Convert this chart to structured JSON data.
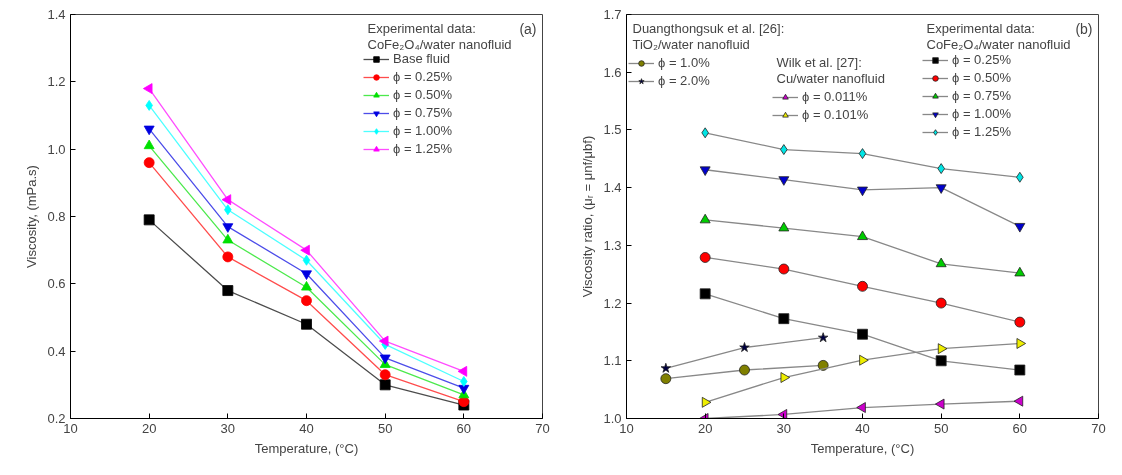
{
  "chart_data": [
    {
      "type": "line",
      "xlabel": "Temperature, (°C)",
      "ylabel": "Viscosity, (mPa.s)",
      "legend_title": "Experimental data: CoFe₂O₄/water nanofluid",
      "annotations": [
        "(a)"
      ],
      "x": [
        20,
        30,
        40,
        50,
        60
      ],
      "xlim": [
        10,
        70
      ],
      "xticks": [
        10,
        20,
        30,
        40,
        50,
        60,
        70
      ],
      "ylim": [
        0.2,
        1.4
      ],
      "yticks": [
        0.2,
        0.4,
        0.6,
        0.8,
        {
          "value": 1.0,
          "label": "1.0"
        },
        1.2,
        1.4
      ],
      "grid": false,
      "legend": "top right",
      "series": [
        {
          "name": "Base fluid",
          "color": "#000000",
          "marker": "square",
          "values": [
            0.79,
            0.58,
            0.48,
            0.3,
            0.24
          ]
        },
        {
          "name": "ϕ = 0.25%",
          "color": "#ff0000",
          "marker": "circle",
          "values": [
            0.96,
            0.68,
            0.55,
            0.33,
            0.25
          ]
        },
        {
          "name": "ϕ = 0.50%",
          "color": "#00e000",
          "marker": "triangle",
          "values": [
            1.01,
            0.73,
            0.59,
            0.36,
            0.27
          ]
        },
        {
          "name": "ϕ = 0.75%",
          "color": "#0000e0",
          "marker": "triangle",
          "values": [
            1.06,
            0.77,
            0.63,
            0.38,
            0.29
          ]
        },
        {
          "name": "ϕ = 1.00%",
          "color": "#00ffff",
          "marker": "diamond",
          "values": [
            1.13,
            0.82,
            0.67,
            0.42,
            0.31
          ]
        },
        {
          "name": "ϕ = 1.25%",
          "color": "#ff00ff",
          "marker": "triangle",
          "values": [
            1.18,
            0.85,
            0.7,
            0.43,
            0.34
          ]
        }
      ]
    },
    {
      "type": "line",
      "xlabel": "Temperature, (°C)",
      "ylabel": "Viscosity ratio, (μᵣ = μnf/μbf)",
      "legend_title": "Experimental data: CoFe₂O₄/water nanofluid",
      "annotations": [
        "(b)",
        "Duangthongsuk et al. [26]: TiO₂/water nanofluid",
        "Wilk et al. [27]: Cu/water nanofluid"
      ],
      "x": [
        20,
        30,
        40,
        50,
        60
      ],
      "xlim": [
        10,
        70
      ],
      "xticks": [
        10,
        20,
        30,
        40,
        50,
        60,
        70
      ],
      "ylim": [
        1.0,
        1.7
      ],
      "yticks": [
        {
          "value": 1.0,
          "label": "1.0"
        },
        1.1,
        1.2,
        1.3,
        1.4,
        1.5,
        1.6,
        1.7
      ],
      "grid": false,
      "legend": "top",
      "series": [
        {
          "name": "ϕ = 1.0%",
          "color": "#808000",
          "marker": "circle",
          "x": [
            15,
            25,
            35
          ],
          "values": [
            1.069,
            1.084,
            1.092
          ]
        },
        {
          "name": "ϕ = 2.0%",
          "color": "#000040",
          "marker": "star",
          "x": [
            15,
            25,
            35
          ],
          "values": [
            1.087,
            1.123,
            1.14
          ]
        },
        {
          "name": "ϕ = 0.011%",
          "color": "#cc00cc",
          "marker": "triangle",
          "values": [
            1.0,
            1.007,
            1.019,
            1.025,
            1.03
          ]
        },
        {
          "name": "ϕ = 0.101%",
          "color": "#eeee00",
          "marker": "triangle",
          "values": [
            1.028,
            1.071,
            1.101,
            1.121,
            1.13
          ]
        },
        {
          "name": "ϕ = 0.25%",
          "color": "#000000",
          "marker": "square",
          "values": [
            1.216,
            1.173,
            1.146,
            1.1,
            1.084
          ]
        },
        {
          "name": "ϕ = 0.50%",
          "color": "#ff0000",
          "marker": "circle",
          "values": [
            1.279,
            1.259,
            1.229,
            1.2,
            1.167
          ]
        },
        {
          "name": "ϕ = 0.75%",
          "color": "#00cc00",
          "marker": "triangle",
          "values": [
            1.344,
            1.33,
            1.315,
            1.268,
            1.252
          ]
        },
        {
          "name": "ϕ = 1.00%",
          "color": "#0000cc",
          "marker": "triangle",
          "values": [
            1.431,
            1.414,
            1.396,
            1.4,
            1.333
          ]
        },
        {
          "name": "ϕ = 1.25%",
          "color": "#00e5e5",
          "marker": "diamond",
          "values": [
            1.495,
            1.466,
            1.459,
            1.433,
            1.418
          ]
        }
      ]
    }
  ]
}
